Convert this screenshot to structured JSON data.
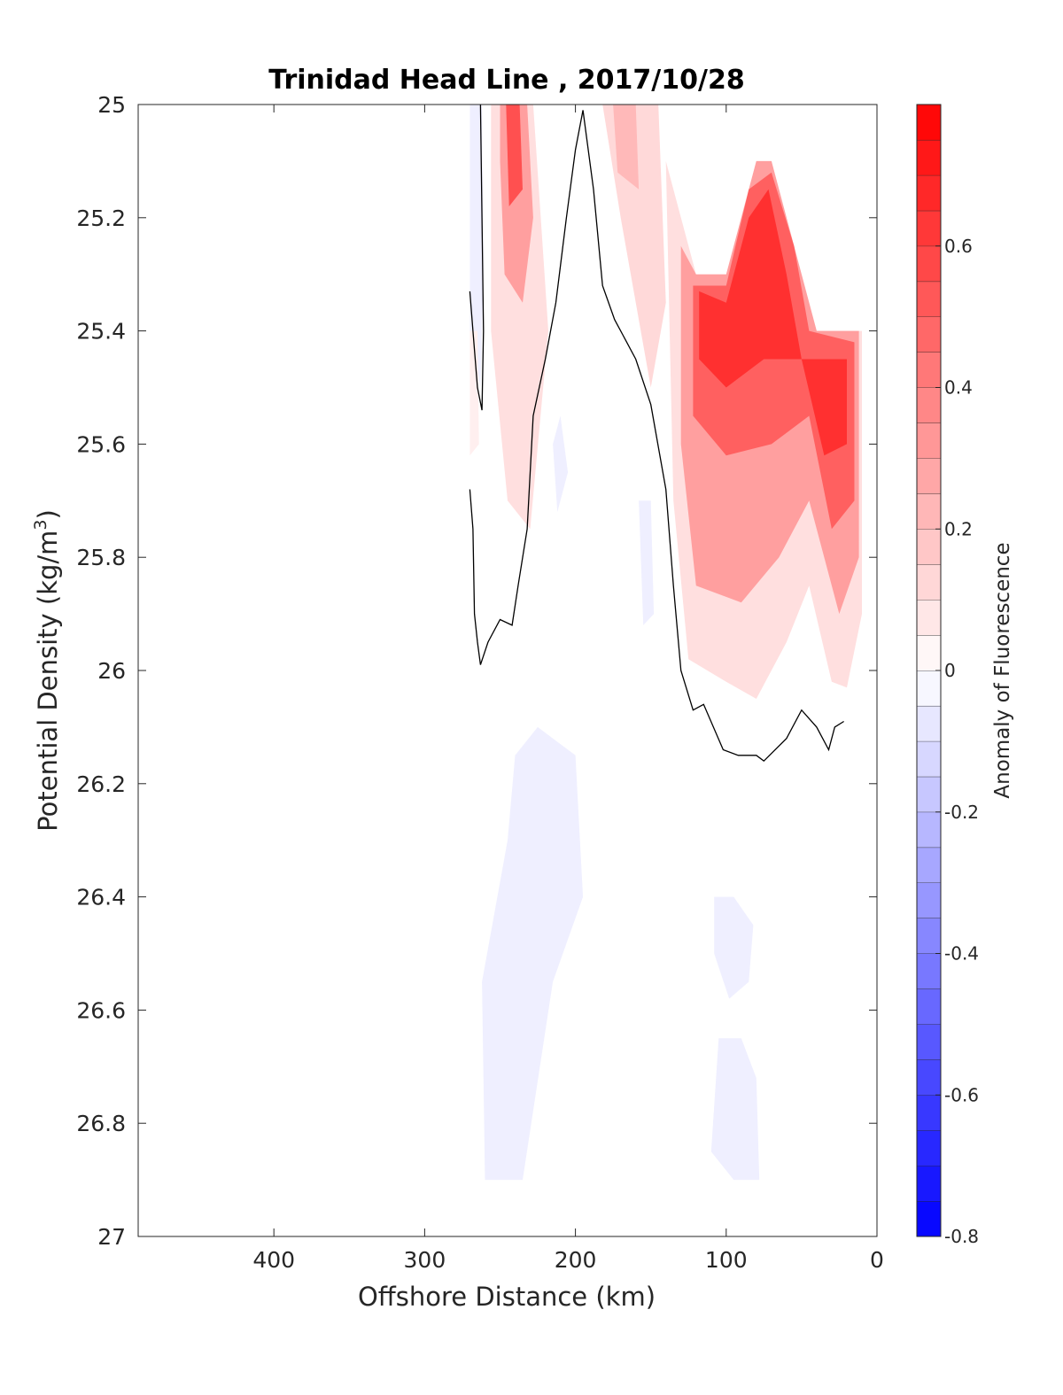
{
  "chart_data": {
    "type": "heatmap",
    "title": "Trinidad Head Line , 2017/10/28",
    "xlabel": "Offshore Distance (km)",
    "ylabel": "Potential Density (kg/m",
    "ylabel_sup": "3",
    "ylabel_end": ")",
    "colorbar_label": "Anomaly of Fluorescence",
    "xlim": [
      490,
      0
    ],
    "ylim": [
      25,
      27
    ],
    "x_reversed": true,
    "y_reversed": true,
    "x_ticks": [
      400,
      300,
      200,
      100,
      0
    ],
    "x_tick_labels": [
      "400",
      "300",
      "200",
      "100",
      "0"
    ],
    "y_ticks": [
      25,
      25.2,
      25.4,
      25.6,
      25.8,
      26,
      26.2,
      26.4,
      26.6,
      26.8,
      27
    ],
    "y_tick_labels": [
      "25",
      "25.2",
      "25.4",
      "25.6",
      "25.8",
      "26",
      "26.2",
      "26.4",
      "26.6",
      "26.8",
      "27"
    ],
    "colorbar": {
      "range": [
        -0.8,
        0.8
      ],
      "step": 0.05,
      "ticks": [
        -0.8,
        -0.6,
        -0.4,
        -0.2,
        0,
        0.2,
        0.4,
        0.6
      ],
      "tick_labels": [
        "-0.8",
        "-0.6",
        "-0.4",
        "-0.2",
        "0",
        "0.2",
        "0.4",
        "0.6"
      ],
      "color_low": "#0000ff",
      "color_mid": "#ffffff",
      "color_high": "#ff0000"
    },
    "regions": [
      {
        "polygon": [
          [
            270,
            25
          ],
          [
            262,
            25
          ],
          [
            261,
            25.3
          ],
          [
            263,
            25.5
          ],
          [
            270,
            25.4
          ]
        ],
        "value": -0.05
      },
      {
        "polygon": [
          [
            256,
            25
          ],
          [
            228,
            25
          ],
          [
            218,
            25.4
          ],
          [
            230,
            25.75
          ],
          [
            245,
            25.7
          ],
          [
            256,
            25.4
          ]
        ],
        "value": 0.1
      },
      {
        "polygon": [
          [
            250,
            25
          ],
          [
            232,
            25
          ],
          [
            228,
            25.2
          ],
          [
            235,
            25.35
          ],
          [
            247,
            25.3
          ],
          [
            250,
            25.1
          ]
        ],
        "value": 0.3
      },
      {
        "polygon": [
          [
            246,
            25
          ],
          [
            237,
            25
          ],
          [
            235,
            25.15
          ],
          [
            244,
            25.18
          ]
        ],
        "value": 0.55
      },
      {
        "polygon": [
          [
            270,
            25.4
          ],
          [
            265,
            25.4
          ],
          [
            264,
            25.6
          ],
          [
            270,
            25.62
          ]
        ],
        "value": 0.05
      },
      {
        "polygon": [
          [
            182,
            25
          ],
          [
            145,
            25
          ],
          [
            140,
            25.35
          ],
          [
            150,
            25.5
          ],
          [
            170,
            25.2
          ]
        ],
        "value": 0.12
      },
      {
        "polygon": [
          [
            175,
            25
          ],
          [
            160,
            25
          ],
          [
            158,
            25.15
          ],
          [
            172,
            25.12
          ]
        ],
        "value": 0.22
      },
      {
        "polygon": [
          [
            140,
            25.1
          ],
          [
            120,
            25.3
          ],
          [
            100,
            25.3
          ],
          [
            80,
            25.1
          ],
          [
            70,
            25.1
          ],
          [
            60,
            25.2
          ],
          [
            50,
            25.3
          ],
          [
            40,
            25.4
          ],
          [
            10,
            25.4
          ],
          [
            10,
            25.9
          ],
          [
            20,
            26.03
          ],
          [
            30,
            26.02
          ],
          [
            45,
            25.85
          ],
          [
            60,
            25.95
          ],
          [
            80,
            26.05
          ],
          [
            100,
            26.02
          ],
          [
            125,
            25.98
          ],
          [
            135,
            25.7
          ]
        ],
        "value": 0.1
      },
      {
        "polygon": [
          [
            130,
            25.25
          ],
          [
            120,
            25.3
          ],
          [
            100,
            25.3
          ],
          [
            80,
            25.1
          ],
          [
            70,
            25.1
          ],
          [
            60,
            25.2
          ],
          [
            50,
            25.3
          ],
          [
            40,
            25.4
          ],
          [
            12,
            25.4
          ],
          [
            12,
            25.8
          ],
          [
            25,
            25.9
          ],
          [
            45,
            25.7
          ],
          [
            65,
            25.8
          ],
          [
            90,
            25.88
          ],
          [
            120,
            25.85
          ],
          [
            130,
            25.6
          ]
        ],
        "value": 0.3
      },
      {
        "polygon": [
          [
            122,
            25.32
          ],
          [
            100,
            25.32
          ],
          [
            85,
            25.15
          ],
          [
            70,
            25.12
          ],
          [
            55,
            25.25
          ],
          [
            45,
            25.4
          ],
          [
            15,
            25.42
          ],
          [
            15,
            25.7
          ],
          [
            30,
            25.75
          ],
          [
            45,
            25.55
          ],
          [
            70,
            25.6
          ],
          [
            100,
            25.62
          ],
          [
            122,
            25.55
          ]
        ],
        "value": 0.5
      },
      {
        "polygon": [
          [
            118,
            25.33
          ],
          [
            100,
            25.35
          ],
          [
            85,
            25.2
          ],
          [
            72,
            25.15
          ],
          [
            60,
            25.3
          ],
          [
            50,
            25.45
          ],
          [
            20,
            25.45
          ],
          [
            20,
            25.6
          ],
          [
            35,
            25.62
          ],
          [
            50,
            25.45
          ],
          [
            75,
            25.45
          ],
          [
            100,
            25.5
          ],
          [
            118,
            25.45
          ]
        ],
        "value": 0.65
      },
      {
        "polygon": [
          [
            215,
            25.6
          ],
          [
            210,
            25.55
          ],
          [
            205,
            25.65
          ],
          [
            212,
            25.72
          ]
        ],
        "value": -0.05
      },
      {
        "polygon": [
          [
            158,
            25.7
          ],
          [
            150,
            25.7
          ],
          [
            148,
            25.9
          ],
          [
            155,
            25.92
          ]
        ],
        "value": -0.05
      },
      {
        "polygon": [
          [
            240,
            26.15
          ],
          [
            225,
            26.1
          ],
          [
            200,
            26.15
          ],
          [
            195,
            26.4
          ],
          [
            215,
            26.55
          ],
          [
            235,
            26.9
          ],
          [
            260,
            26.9
          ],
          [
            262,
            26.55
          ],
          [
            245,
            26.3
          ]
        ],
        "value": -0.05
      },
      {
        "polygon": [
          [
            108,
            26.4
          ],
          [
            95,
            26.4
          ],
          [
            82,
            26.45
          ],
          [
            85,
            26.55
          ],
          [
            98,
            26.58
          ],
          [
            108,
            26.5
          ]
        ],
        "value": -0.05
      },
      {
        "polygon": [
          [
            105,
            26.65
          ],
          [
            90,
            26.65
          ],
          [
            80,
            26.72
          ],
          [
            78,
            26.9
          ],
          [
            95,
            26.9
          ],
          [
            110,
            26.85
          ]
        ],
        "value": -0.05
      }
    ],
    "zero_contours": [
      {
        "points": [
          [
            270,
            25.33
          ],
          [
            268,
            25.4
          ],
          [
            265,
            25.5
          ],
          [
            262,
            25.54
          ],
          [
            261,
            25.4
          ],
          [
            262,
            25.2
          ],
          [
            263,
            25.0
          ]
        ]
      },
      {
        "points": [
          [
            270,
            25.68
          ],
          [
            268,
            25.75
          ],
          [
            267,
            25.9
          ],
          [
            265,
            25.95
          ],
          [
            263,
            25.99
          ],
          [
            258,
            25.95
          ],
          [
            250,
            25.91
          ],
          [
            242,
            25.92
          ],
          [
            238,
            25.85
          ],
          [
            232,
            25.75
          ],
          [
            228,
            25.55
          ],
          [
            220,
            25.45
          ],
          [
            213,
            25.35
          ],
          [
            206,
            25.2
          ],
          [
            200,
            25.08
          ],
          [
            195,
            25.01
          ],
          [
            188,
            25.15
          ],
          [
            182,
            25.32
          ],
          [
            174,
            25.38
          ],
          [
            168,
            25.41
          ],
          [
            160,
            25.45
          ],
          [
            150,
            25.53
          ],
          [
            140,
            25.68
          ],
          [
            135,
            25.85
          ],
          [
            130,
            26.0
          ],
          [
            122,
            26.07
          ],
          [
            115,
            26.06
          ],
          [
            102,
            26.14
          ],
          [
            92,
            26.15
          ],
          [
            80,
            26.15
          ],
          [
            75,
            26.16
          ],
          [
            60,
            26.12
          ],
          [
            50,
            26.07
          ],
          [
            40,
            26.1
          ],
          [
            32,
            26.14
          ],
          [
            28,
            26.1
          ],
          [
            22,
            26.09
          ]
        ]
      }
    ]
  }
}
